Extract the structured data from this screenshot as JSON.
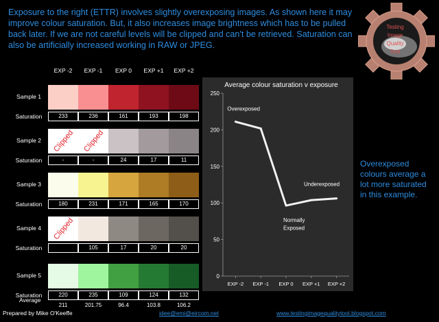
{
  "intro": "Exposure to the right (ETTR) involves slightly overexposing images.  As shown here it  may improve colour saturation.  But, it also increases image brightness which has to be pulled back later.  If we are not careful levels will be clipped and can't be retrieved.  Saturation can also be artificially increased working in RAW or JPEG.",
  "logo": {
    "lines": [
      "Testing",
      "Image",
      "Quality",
      "Tool"
    ]
  },
  "columns": [
    "EXP -2",
    "EXP -1",
    "EXP 0",
    "EXP +1",
    "EXP +2"
  ],
  "saturation_label": "Saturation",
  "clipped_text": "Clipped",
  "samples": [
    {
      "label": "Sample 1",
      "colors": [
        "#fccfc6",
        "#fa8f92",
        "#c0242e",
        "#8f1220",
        "#6e0a16"
      ],
      "clipped": [
        false,
        false,
        false,
        false,
        false
      ],
      "values": [
        "233",
        "236",
        "161",
        "193",
        "198"
      ]
    },
    {
      "label": "Sample 2",
      "colors": [
        "#ffffff",
        "#ffffff",
        "#cbc2c6",
        "#a29a9d",
        "#8b8486"
      ],
      "clipped": [
        true,
        true,
        false,
        false,
        false
      ],
      "values": [
        "-",
        "-",
        "24",
        "17",
        "11"
      ]
    },
    {
      "label": "Sample 3",
      "colors": [
        "#fcfcec",
        "#f6f390",
        "#d6a53e",
        "#ad7c24",
        "#8e5e18"
      ],
      "clipped": [
        false,
        false,
        false,
        false,
        false
      ],
      "values": [
        "180",
        "231",
        "171",
        "165",
        "170"
      ]
    },
    {
      "label": "Sample 4",
      "colors": [
        "#ffffff",
        "#f3e8e0",
        "#8f8983",
        "#6d6761",
        "#534f4b"
      ],
      "clipped": [
        true,
        false,
        false,
        false,
        false
      ],
      "values": [
        "",
        "105",
        "17",
        "20",
        "20"
      ]
    },
    {
      "label": "Sample 5",
      "colors": [
        "#e6fbe6",
        "#9ef59e",
        "#41a041",
        "#257a33",
        "#175b26"
      ],
      "clipped": [
        false,
        false,
        false,
        false,
        false
      ],
      "values": [
        "220",
        "235",
        "109",
        "124",
        "132"
      ]
    }
  ],
  "average_label": "Average",
  "averages": [
    "211",
    "201.75",
    "96.4",
    "103.8",
    "106.2"
  ],
  "chart_data": {
    "type": "line",
    "title": "Average colour saturation v exposure",
    "categories": [
      "EXP -2",
      "EXP -1",
      "EXP 0",
      "EXP +1",
      "EXP +2"
    ],
    "series": [
      {
        "values": [
          211,
          201.75,
          96.4,
          103.8,
          106.2
        ]
      }
    ],
    "ylim": [
      0,
      250
    ],
    "yticks": [
      0,
      50,
      100,
      150,
      200,
      250
    ],
    "grid": false,
    "annotations": {
      "overexposed": "Overexposed",
      "underexposed": "Underexposed",
      "normally": "Normally",
      "exposed": "Exposed"
    },
    "line_color": "#f2f2f2",
    "bg_color": "#2b2b2b"
  },
  "side_note": "Overexposed colours average a lot more saturated in this example.",
  "footer": {
    "author": "Prepared by Mike O'Keeffe",
    "email": "idee@emi@eircom.net",
    "blog": "www.testingimagequalitytool.blogspot.com"
  }
}
